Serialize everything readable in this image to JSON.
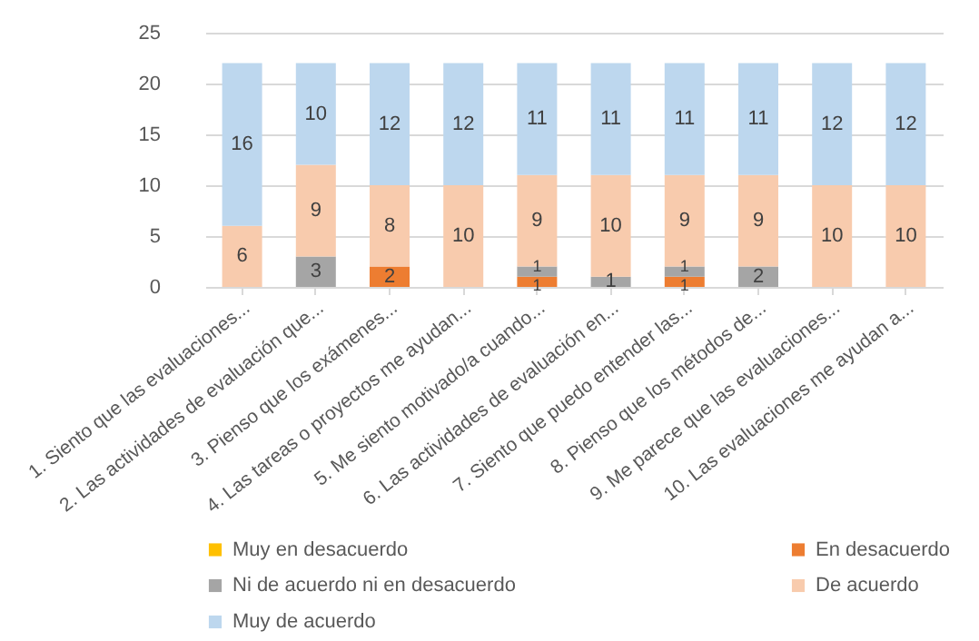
{
  "chart_data": {
    "type": "bar",
    "stacked": true,
    "categories": [
      "1. Siento que las evaluaciones...",
      "2. Las actividades de evaluación que...",
      "3. Pienso que los exámenes...",
      "4. Las tareas o proyectos me ayudan...",
      "5. Me siento motivado/a cuando...",
      "6. Las actividades de evaluación en...",
      "7. Siento que puedo entender las...",
      "8. Pienso que los métodos de...",
      "9. Me parece que las evaluaciones...",
      "10. Las evaluaciones me ayudan a..."
    ],
    "series": [
      {
        "name": "Muy en desacuerdo",
        "color": "#ffc000",
        "values": [
          0,
          0,
          0,
          0,
          0,
          0,
          0,
          0,
          0,
          0
        ],
        "value_labels": [
          null,
          null,
          null,
          null,
          null,
          null,
          null,
          null,
          null,
          null
        ]
      },
      {
        "name": "En desacuerdo",
        "color": "#ed7d31",
        "values": [
          0,
          0,
          2,
          0,
          1,
          0,
          1,
          0,
          0,
          0
        ],
        "value_labels": [
          null,
          null,
          "2",
          null,
          "1",
          null,
          "1",
          null,
          null,
          null
        ]
      },
      {
        "name": "Ni de acuerdo ni en desacuerdo",
        "color": "#a5a5a5",
        "values": [
          0,
          3,
          0,
          0,
          1,
          1,
          1,
          2,
          0,
          0
        ],
        "value_labels": [
          null,
          "3",
          null,
          null,
          "1",
          "1",
          "1",
          "2",
          null,
          null
        ]
      },
      {
        "name": "De acuerdo",
        "color": "#f8cbad",
        "values": [
          6,
          9,
          8,
          10,
          9,
          10,
          9,
          9,
          10,
          10
        ],
        "value_labels": [
          "6",
          "9",
          "8",
          "10",
          "9",
          "10",
          "9",
          "9",
          "10",
          "10"
        ]
      },
      {
        "name": "Muy de acuerdo",
        "color": "#bdd7ee",
        "values": [
          16,
          10,
          12,
          12,
          11,
          11,
          11,
          11,
          12,
          12
        ],
        "value_labels": [
          "16",
          "10",
          "12",
          "12",
          "11",
          "11",
          "11",
          "11",
          "12",
          "12"
        ]
      }
    ],
    "ylim": [
      0,
      25
    ],
    "yticks": [
      0,
      5,
      10,
      15,
      20,
      25
    ],
    "grid": "y",
    "legend": "bottom"
  }
}
